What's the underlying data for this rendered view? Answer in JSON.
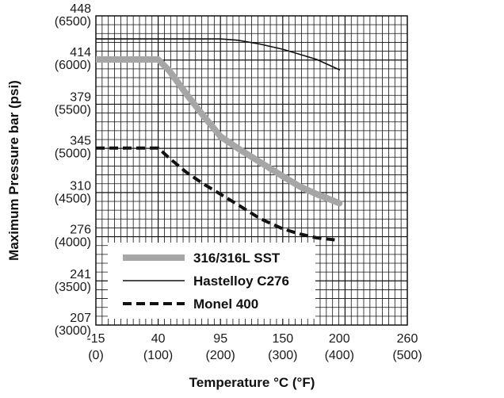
{
  "chart_data": {
    "type": "line",
    "title": "",
    "xlabel": "Temperature °C (°F)",
    "ylabel": "Maximum Pressure bar (psi)",
    "xlim": [
      -15,
      260
    ],
    "ylim": [
      207,
      448
    ],
    "x_ticks": [
      {
        "value": -15,
        "label": "-15",
        "sublabel": "(0)"
      },
      {
        "value": 40,
        "label": "40",
        "sublabel": "(100)"
      },
      {
        "value": 95,
        "label": "95",
        "sublabel": "(200)"
      },
      {
        "value": 150,
        "label": "150",
        "sublabel": "(300)"
      },
      {
        "value": 200,
        "label": "200",
        "sublabel": "(400)"
      },
      {
        "value": 260,
        "label": "260",
        "sublabel": "(500)"
      }
    ],
    "y_ticks": [
      {
        "value": 448,
        "label": "448",
        "sublabel": "(6500)"
      },
      {
        "value": 414,
        "label": "414",
        "sublabel": "(6000)"
      },
      {
        "value": 379,
        "label": "379",
        "sublabel": "(5500)"
      },
      {
        "value": 345,
        "label": "345",
        "sublabel": "(5000)"
      },
      {
        "value": 310,
        "label": "310",
        "sublabel": "(4500)"
      },
      {
        "value": 276,
        "label": "276",
        "sublabel": "(4000)"
      },
      {
        "value": 241,
        "label": "241",
        "sublabel": "(3500)"
      },
      {
        "value": 207,
        "label": "207",
        "sublabel": "(3000)"
      }
    ],
    "grid": true,
    "legend_position": "bottom-left",
    "series": [
      {
        "name": "316/316L SST",
        "color": "#a6a6a6",
        "style": "thick",
        "x": [
          -15,
          0,
          20,
          40,
          50,
          65,
          80,
          95,
          110,
          130,
          150,
          165,
          180,
          200
        ],
        "y": [
          414,
          414,
          414,
          414,
          405,
          387,
          370,
          354,
          345,
          334,
          323,
          315,
          309,
          302
        ]
      },
      {
        "name": "Hastelloy C276",
        "color": "#111111",
        "style": "thin",
        "x": [
          -15,
          20,
          40,
          60,
          80,
          95,
          110,
          130,
          150,
          165,
          180,
          200
        ],
        "y": [
          430,
          430,
          430,
          430,
          430,
          430,
          429,
          426,
          422,
          418,
          414,
          406
        ]
      },
      {
        "name": "Monel 400",
        "color": "#111111",
        "style": "dashed",
        "x": [
          -15,
          0,
          20,
          40,
          50,
          65,
          80,
          95,
          110,
          130,
          150,
          165,
          180,
          200
        ],
        "y": [
          345,
          345,
          345,
          345,
          337,
          326,
          317,
          309,
          301,
          290,
          282,
          278,
          275,
          273
        ]
      }
    ]
  }
}
